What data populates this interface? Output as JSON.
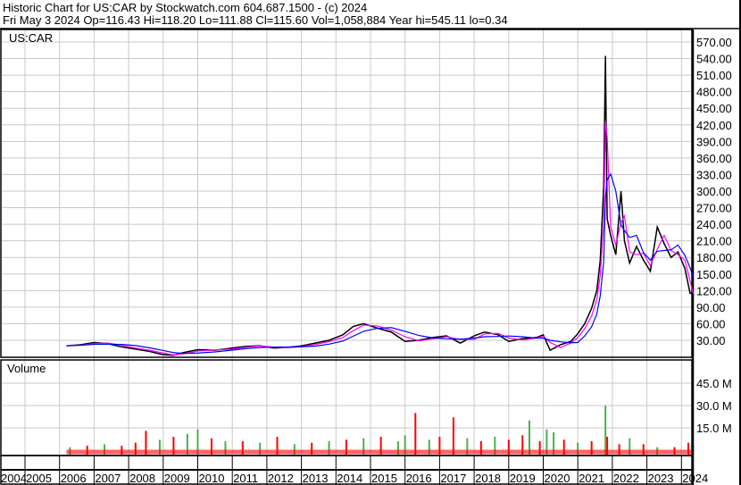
{
  "header": {
    "title": "Historic Chart for US:CAR by Stockwatch.com 604.687.1500 - (c) 2024",
    "quote": "Fri May  3 2024   Op=116.43  Hi=118.20   Lo=111.88   Cl=115.60   Vol=1,058,884   Year hi=545.11   lo=0.34"
  },
  "chart_data": [
    {
      "type": "line",
      "title": "US:CAR",
      "ylim": [
        0,
        585
      ],
      "yticks": [
        "30.00",
        "60.00",
        "90.00",
        "120.00",
        "150.00",
        "180.00",
        "210.00",
        "240.00",
        "270.00",
        "300.00",
        "330.00",
        "360.00",
        "390.00",
        "420.00",
        "450.00",
        "480.00",
        "510.00",
        "540.00",
        "570.00"
      ],
      "x": [
        2006.2,
        2006.6,
        2007.0,
        2007.4,
        2007.8,
        2008.2,
        2008.6,
        2009.0,
        2009.3,
        2009.6,
        2010.0,
        2010.5,
        2011.0,
        2011.4,
        2011.8,
        2012.2,
        2012.6,
        2013.0,
        2013.4,
        2013.8,
        2014.2,
        2014.5,
        2014.8,
        2015.2,
        2015.6,
        2016.0,
        2016.4,
        2016.8,
        2017.2,
        2017.6,
        2018.0,
        2018.3,
        2018.7,
        2019.0,
        2019.4,
        2019.8,
        2020.0,
        2020.2,
        2020.5,
        2020.8,
        2021.0,
        2021.2,
        2021.4,
        2021.55,
        2021.65,
        2021.75,
        2021.8,
        2021.85,
        2021.95,
        2022.1,
        2022.25,
        2022.35,
        2022.5,
        2022.7,
        2022.9,
        2023.1,
        2023.3,
        2023.5,
        2023.7,
        2023.9,
        2024.1,
        2024.25,
        2024.34
      ],
      "values": [
        20,
        22,
        26,
        24,
        18,
        14,
        10,
        4,
        3,
        8,
        13,
        12,
        16,
        19,
        20,
        16,
        17,
        20,
        25,
        30,
        40,
        55,
        60,
        52,
        45,
        28,
        30,
        35,
        38,
        25,
        38,
        45,
        40,
        28,
        33,
        35,
        40,
        12,
        22,
        28,
        42,
        60,
        88,
        120,
        175,
        310,
        545,
        250,
        220,
        185,
        300,
        210,
        170,
        200,
        175,
        155,
        235,
        205,
        180,
        190,
        160,
        115,
        115
      ]
    },
    {
      "type": "bar",
      "title": "Volume",
      "ylim": [
        0,
        55
      ],
      "yticks": [
        "15.0 M",
        "30.0 M",
        "45.0 M"
      ],
      "x": [
        2006.3,
        2006.8,
        2007.3,
        2007.8,
        2008.2,
        2008.5,
        2008.9,
        2009.3,
        2009.7,
        2010.0,
        2010.4,
        2010.8,
        2011.3,
        2011.8,
        2012.3,
        2012.8,
        2013.3,
        2013.8,
        2014.3,
        2014.8,
        2015.3,
        2015.8,
        2016.0,
        2016.3,
        2016.7,
        2017.0,
        2017.4,
        2017.8,
        2018.2,
        2018.6,
        2019.0,
        2019.4,
        2019.6,
        2019.9,
        2020.1,
        2020.3,
        2020.6,
        2021.0,
        2021.4,
        2021.8,
        2021.85,
        2022.2,
        2022.5,
        2022.9,
        2023.3,
        2023.8,
        2024.2
      ],
      "values": [
        2,
        3,
        4,
        3,
        5,
        13,
        7,
        9,
        11,
        14,
        8,
        6,
        6,
        5,
        9,
        4,
        5,
        6,
        7,
        8,
        9,
        6,
        10,
        25,
        7,
        9,
        22,
        8,
        6,
        9,
        7,
        10,
        20,
        6,
        14,
        12,
        7,
        5,
        6,
        30,
        9,
        4,
        8,
        4,
        2,
        2,
        5
      ],
      "up": [
        1,
        0,
        1,
        0,
        0,
        0,
        1,
        0,
        1,
        1,
        0,
        1,
        0,
        1,
        0,
        1,
        0,
        1,
        0,
        1,
        0,
        1,
        1,
        0,
        1,
        0,
        0,
        1,
        0,
        1,
        0,
        0,
        1,
        0,
        1,
        1,
        0,
        1,
        0,
        1,
        0,
        0,
        1,
        0,
        1,
        0,
        0
      ]
    }
  ],
  "xaxis": {
    "years": [
      "2004",
      "2005",
      "2006",
      "2007",
      "2008",
      "2009",
      "2010",
      "2011",
      "2012",
      "2013",
      "2014",
      "2015",
      "2016",
      "2017",
      "2018",
      "2019",
      "2020",
      "2021",
      "2022",
      "2023",
      "2024"
    ]
  },
  "colors": {
    "up": "#4caf50",
    "down": "#ff0000",
    "price": "#000000",
    "ma1": "#ff00ff",
    "ma2": "#0000ff",
    "grid": "#c8c8c8"
  }
}
